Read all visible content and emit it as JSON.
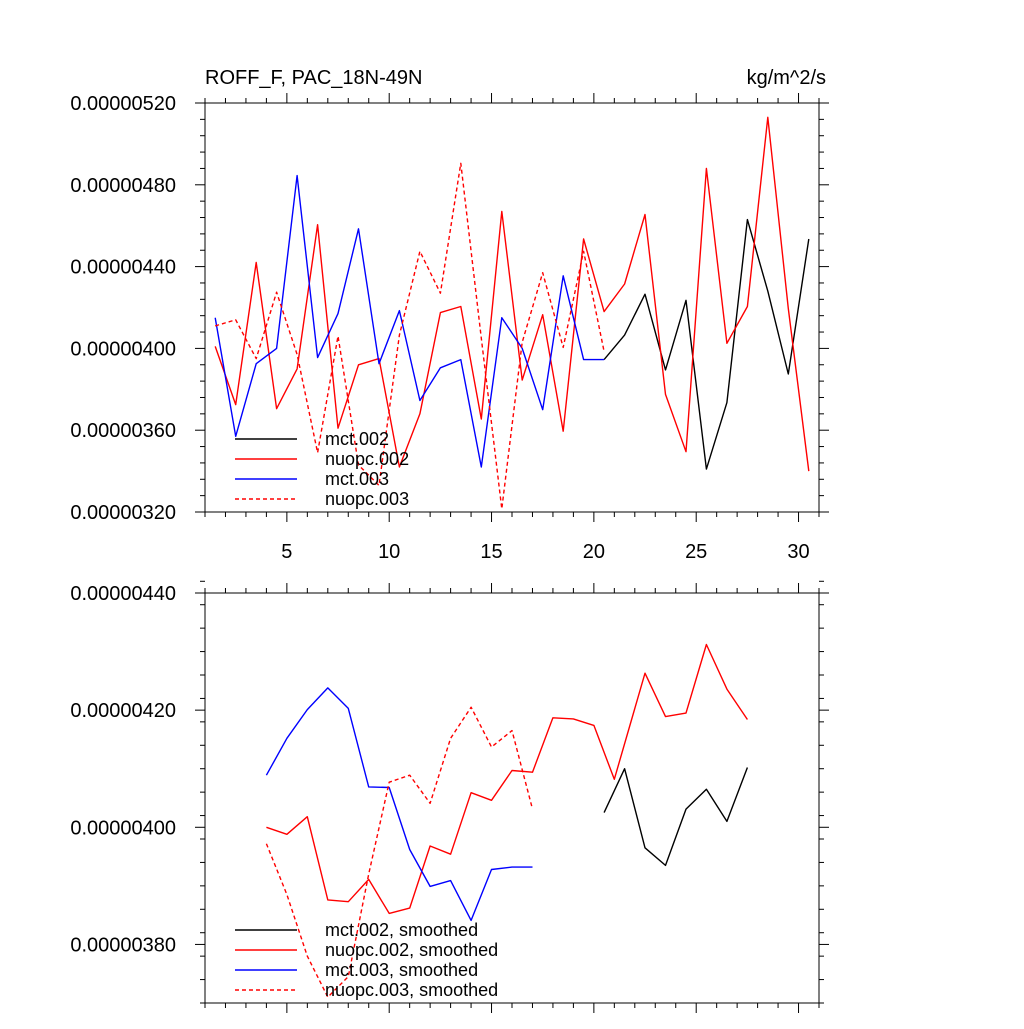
{
  "chart_data": [
    {
      "type": "line",
      "title": "ROFF_F, PAC_18N-49N",
      "units": "kg/m^2/s",
      "xlim": [
        1,
        31
      ],
      "ylim": [
        3.2e-06,
        5.2e-06
      ],
      "x_ticks": [
        5,
        10,
        15,
        20,
        25,
        30
      ],
      "x_tick_labels": [
        "5",
        "10",
        "15",
        "20",
        "25",
        "30"
      ],
      "y_ticks": [
        3.2e-06,
        3.6e-06,
        4e-06,
        4.4e-06,
        4.8e-06,
        5.2e-06
      ],
      "y_tick_labels": [
        "0.00000320",
        "0.00000360",
        "0.00000400",
        "0.00000440",
        "0.00000480",
        "0.00000520"
      ],
      "legend_position": "bottom-left",
      "series": [
        {
          "name": "mct.002",
          "color": "#000000",
          "dash": "solid",
          "x": [
            20.5,
            21.5,
            22.5,
            23.5,
            24.5,
            25.5,
            26.5,
            27.5,
            28.5,
            29.5,
            30.5
          ],
          "values": [
            3.945e-06,
            4.065e-06,
            4.265e-06,
            3.895e-06,
            4.235e-06,
            3.41e-06,
            3.735e-06,
            4.63e-06,
            4.28e-06,
            3.875e-06,
            4.535e-06
          ]
        },
        {
          "name": "nuopc.002",
          "color": "#ff0000",
          "dash": "solid",
          "x": [
            1.5,
            2.5,
            3.5,
            4.5,
            5.5,
            6.5,
            7.5,
            8.5,
            9.5,
            10.5,
            11.5,
            12.5,
            13.5,
            14.5,
            15.5,
            16.5,
            17.5,
            18.5,
            19.5,
            20.5,
            21.5,
            22.5,
            23.5,
            24.5,
            25.5,
            26.5,
            27.5,
            28.5,
            29.5,
            30.5
          ],
          "values": [
            4.01e-06,
            3.725e-06,
            4.42e-06,
            3.705e-06,
            3.9e-06,
            4.605e-06,
            3.61e-06,
            3.92e-06,
            3.95e-06,
            3.42e-06,
            3.68e-06,
            4.175e-06,
            4.205e-06,
            3.655e-06,
            4.67e-06,
            3.845e-06,
            4.165e-06,
            3.595e-06,
            4.535e-06,
            4.18e-06,
            4.315e-06,
            4.655e-06,
            3.775e-06,
            3.495e-06,
            4.88e-06,
            4.025e-06,
            4.205e-06,
            5.13e-06,
            4.195e-06,
            3.4e-06
          ]
        },
        {
          "name": "mct.003",
          "color": "#0000ff",
          "dash": "solid",
          "x": [
            1.5,
            2.5,
            3.5,
            4.5,
            5.5,
            6.5,
            7.5,
            8.5,
            9.5,
            10.5,
            11.5,
            12.5,
            13.5,
            14.5,
            15.5,
            16.5,
            17.5,
            18.5,
            19.5,
            20.5
          ],
          "values": [
            4.15e-06,
            3.57e-06,
            3.925e-06,
            4e-06,
            4.845e-06,
            3.955e-06,
            4.17e-06,
            4.585e-06,
            3.925e-06,
            4.185e-06,
            3.745e-06,
            3.905e-06,
            3.945e-06,
            3.42e-06,
            4.15e-06,
            4e-06,
            3.7e-06,
            4.355e-06,
            3.945e-06,
            3.945e-06
          ]
        },
        {
          "name": "nuopc.003",
          "color": "#ff0000",
          "dash": "dashed",
          "x": [
            1.5,
            2.5,
            3.5,
            4.5,
            5.5,
            6.5,
            7.5,
            8.5,
            9.5,
            10.5,
            11.5,
            12.5,
            13.5,
            14.5,
            15.5,
            16.5,
            17.5,
            18.5,
            19.5,
            20.5
          ],
          "values": [
            4.11e-06,
            4.14e-06,
            3.95e-06,
            4.275e-06,
            3.97e-06,
            3.49e-06,
            4.06e-06,
            3.43e-06,
            3.33e-06,
            4.065e-06,
            4.475e-06,
            4.27e-06,
            4.905e-06,
            4.05e-06,
            3.215e-06,
            4.03e-06,
            4.37e-06,
            4.005e-06,
            4.475e-06,
            3.985e-06
          ]
        }
      ]
    },
    {
      "type": "line",
      "title": "",
      "units": "",
      "xlim": [
        1,
        31
      ],
      "ylim": [
        3.7e-06,
        4.4e-06
      ],
      "x_ticks": [
        5,
        10,
        15,
        20,
        25,
        30
      ],
      "x_tick_labels": [],
      "y_ticks": [
        3.8e-06,
        4e-06,
        4.2e-06,
        4.4e-06
      ],
      "y_tick_labels": [
        "0.00000380",
        "0.00000400",
        "0.00000420",
        "0.00000440"
      ],
      "legend_position": "bottom-left",
      "series": [
        {
          "name": "mct.002, smoothed",
          "color": "#000000",
          "dash": "solid",
          "x": [
            20.5,
            21.5,
            22.5,
            23.5,
            24.5,
            25.5,
            26.5,
            27.5
          ],
          "values": [
            4.025e-06,
            4.1e-06,
            3.965e-06,
            3.935e-06,
            4.031e-06,
            4.065e-06,
            4.01e-06,
            4.102e-06
          ]
        },
        {
          "name": "nuopc.002, smoothed",
          "color": "#ff0000",
          "dash": "solid",
          "x": [
            4,
            5,
            6,
            7,
            8,
            9,
            10,
            11,
            12,
            13,
            14,
            15,
            16,
            17,
            18,
            19,
            20,
            21,
            22.5,
            23.5,
            24.5,
            25.5,
            26.5,
            27.5
          ],
          "values": [
            4e-06,
            3.988e-06,
            4.018e-06,
            3.876e-06,
            3.873e-06,
            3.911e-06,
            3.853e-06,
            3.862e-06,
            3.968e-06,
            3.954e-06,
            4.059e-06,
            4.046e-06,
            4.097e-06,
            4.094e-06,
            4.187e-06,
            4.185e-06,
            4.174e-06,
            4.082e-06,
            4.263e-06,
            4.189e-06,
            4.195e-06,
            4.312e-06,
            4.236e-06,
            4.184e-06
          ]
        },
        {
          "name": "mct.003, smoothed",
          "color": "#0000ff",
          "dash": "solid",
          "x": [
            4,
            5,
            6,
            7,
            8,
            9,
            10,
            11,
            12,
            13,
            14,
            15,
            16,
            17
          ],
          "values": [
            4.089e-06,
            4.152e-06,
            4.201e-06,
            4.238e-06,
            4.203e-06,
            4.069e-06,
            4.068e-06,
            3.962e-06,
            3.899e-06,
            3.909e-06,
            3.841e-06,
            3.928e-06,
            3.932e-06,
            3.932e-06
          ]
        },
        {
          "name": "nuopc.003, smoothed",
          "color": "#ff0000",
          "dash": "dashed",
          "x": [
            4,
            5,
            6,
            7,
            8,
            9,
            10,
            11,
            12,
            13,
            14,
            15,
            16,
            17
          ],
          "values": [
            3.972e-06,
            3.885e-06,
            3.78e-06,
            3.71e-06,
            3.745e-06,
            3.92e-06,
            4.077e-06,
            4.089e-06,
            4.041e-06,
            4.152e-06,
            4.205e-06,
            4.137e-06,
            4.165e-06,
            4.031e-06
          ]
        }
      ]
    }
  ]
}
